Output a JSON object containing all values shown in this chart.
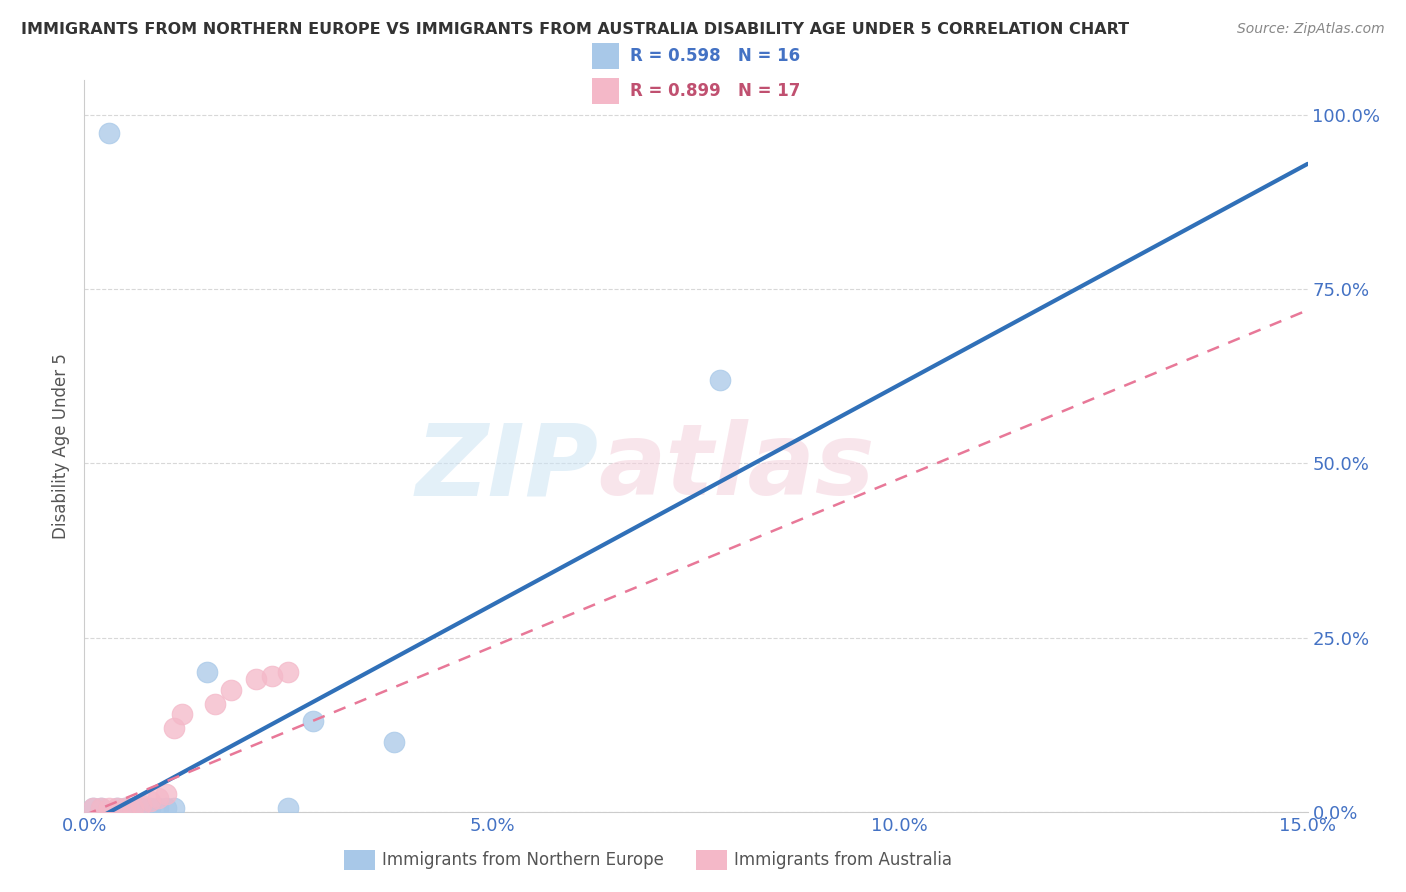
{
  "title": "IMMIGRANTS FROM NORTHERN EUROPE VS IMMIGRANTS FROM AUSTRALIA DISABILITY AGE UNDER 5 CORRELATION CHART",
  "source": "Source: ZipAtlas.com",
  "ylabel": "Disability Age Under 5",
  "xlim": [
    0.0,
    0.15
  ],
  "ylim": [
    0.0,
    1.05
  ],
  "xticks": [
    0.0,
    0.05,
    0.1,
    0.15
  ],
  "xtick_labels": [
    "0.0%",
    "5.0%",
    "10.0%",
    "15.0%"
  ],
  "yticks": [
    0.0,
    0.25,
    0.5,
    0.75,
    1.0
  ],
  "ytick_labels": [
    "0.0%",
    "25.0%",
    "50.0%",
    "75.0%",
    "100.0%"
  ],
  "blue_color": "#a8c8e8",
  "pink_color": "#f4b8c8",
  "blue_line_color": "#3070b8",
  "pink_line_color": "#e87898",
  "legend_R_blue": "R = 0.598",
  "legend_N_blue": "N = 16",
  "legend_R_pink": "R = 0.899",
  "legend_N_pink": "N = 17",
  "blue_scatter_x": [
    0.001,
    0.002,
    0.003,
    0.004,
    0.005,
    0.006,
    0.007,
    0.008,
    0.009,
    0.01,
    0.011,
    0.015,
    0.028,
    0.038,
    0.078,
    0.025
  ],
  "blue_scatter_y": [
    0.005,
    0.005,
    0.975,
    0.005,
    0.005,
    0.005,
    0.005,
    0.005,
    0.005,
    0.005,
    0.005,
    0.2,
    0.13,
    0.1,
    0.62,
    0.005
  ],
  "pink_scatter_x": [
    0.001,
    0.002,
    0.003,
    0.004,
    0.005,
    0.006,
    0.007,
    0.008,
    0.009,
    0.01,
    0.011,
    0.012,
    0.016,
    0.018,
    0.021,
    0.023,
    0.025
  ],
  "pink_scatter_y": [
    0.005,
    0.005,
    0.005,
    0.005,
    0.005,
    0.005,
    0.01,
    0.015,
    0.02,
    0.025,
    0.12,
    0.14,
    0.155,
    0.175,
    0.19,
    0.195,
    0.2
  ],
  "blue_line_x0": 0.0,
  "blue_line_y0": -0.02,
  "blue_line_x1": 0.15,
  "blue_line_y1": 0.93,
  "pink_line_x0": 0.0,
  "pink_line_y0": -0.005,
  "pink_line_x1": 0.15,
  "pink_line_y1": 0.72,
  "background_color": "#ffffff",
  "grid_color": "#d8d8d8"
}
